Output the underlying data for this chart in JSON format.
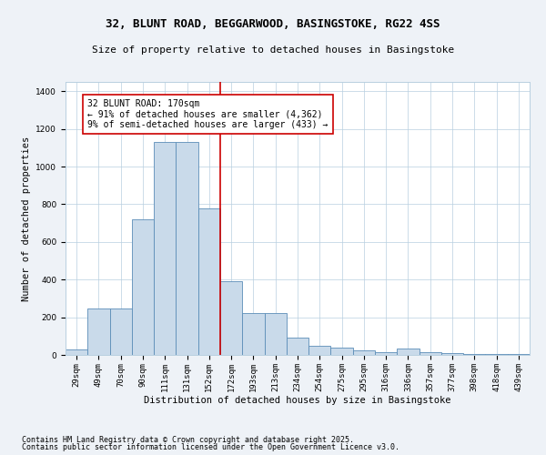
{
  "title1": "32, BLUNT ROAD, BEGGARWOOD, BASINGSTOKE, RG22 4SS",
  "title2": "Size of property relative to detached houses in Basingstoke",
  "xlabel": "Distribution of detached houses by size in Basingstoke",
  "ylabel": "Number of detached properties",
  "categories": [
    "29sqm",
    "49sqm",
    "70sqm",
    "90sqm",
    "111sqm",
    "131sqm",
    "152sqm",
    "172sqm",
    "193sqm",
    "213sqm",
    "234sqm",
    "254sqm",
    "275sqm",
    "295sqm",
    "316sqm",
    "336sqm",
    "357sqm",
    "377sqm",
    "398sqm",
    "418sqm",
    "439sqm"
  ],
  "values": [
    30,
    245,
    245,
    720,
    1130,
    1130,
    780,
    390,
    220,
    220,
    90,
    50,
    40,
    25,
    15,
    35,
    15,
    10,
    5,
    5,
    3
  ],
  "bar_color": "#c9daea",
  "bar_edge_color": "#5b8db8",
  "vline_color": "#cc0000",
  "annotation_text": "32 BLUNT ROAD: 170sqm\n← 91% of detached houses are smaller (4,362)\n9% of semi-detached houses are larger (433) →",
  "annotation_box_color": "#cc0000",
  "ylim": [
    0,
    1450
  ],
  "yticks": [
    0,
    200,
    400,
    600,
    800,
    1000,
    1200,
    1400
  ],
  "footer1": "Contains HM Land Registry data © Crown copyright and database right 2025.",
  "footer2": "Contains public sector information licensed under the Open Government Licence v3.0.",
  "bg_color": "#eef2f7",
  "plot_bg_color": "#ffffff",
  "title1_fontsize": 9,
  "title2_fontsize": 8,
  "annotation_fontsize": 7,
  "footer_fontsize": 6,
  "axis_label_fontsize": 7.5,
  "tick_fontsize": 6.5,
  "ylabel_fontsize": 7.5
}
